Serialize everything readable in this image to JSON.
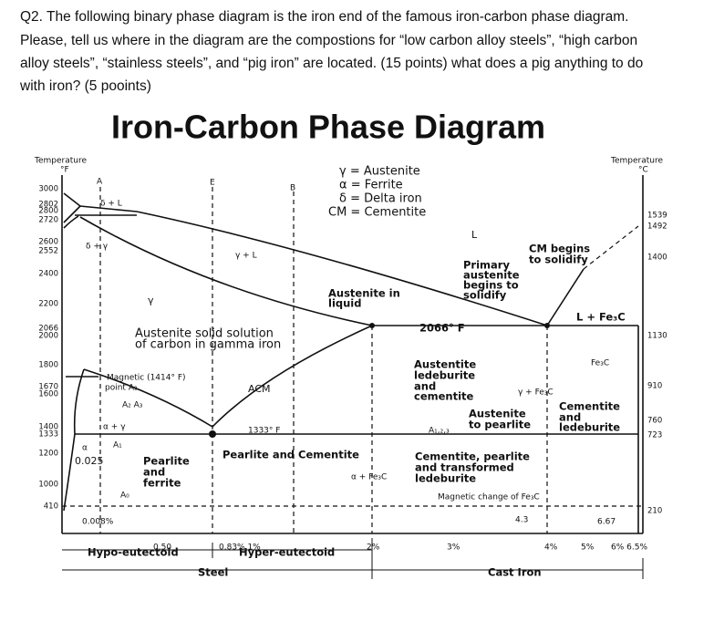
{
  "question": {
    "lines": [
      "Q2. The following binary phase diagram is the iron end of the famous iron-carbon phase diagram.",
      "Please, tell us where in the diagram are the compostions for “low carbon alloy steels”, “high carbon",
      "alloy steels”, “stainless steels”, and “pig iron” are located. (15 points) what does a pig anything to do",
      "with iron? (5 pooints)"
    ]
  },
  "diagram": {
    "title": "Iron-Carbon Phase Diagram",
    "left_ticks": [
      "3000",
      "2802",
      "2800",
      "2720",
      "2600",
      "2552",
      "2400",
      "2200",
      "2066",
      "2000",
      "1800",
      "1670",
      "1600",
      "1400",
      "1333",
      "1200",
      "1000",
      "410"
    ],
    "right_ticks": [
      "1539",
      "1492",
      "1400",
      "1130",
      "910",
      "760",
      "723",
      "210"
    ],
    "labels": [
      "Temperature",
      "°F",
      "Temperature",
      "°C",
      "γ = Austenite",
      "α = Ferrite",
      "δ = Delta  iron",
      "CM = Cementite",
      "A",
      "E",
      "B",
      "δ + L",
      "δ + γ",
      "γ + L",
      "L",
      "γ",
      "Austenite in",
      "liquid",
      "Primary",
      "austenite",
      "begins to",
      "solidify",
      "CM begins",
      "to solidify",
      "L + Fe₃C",
      "2066° F",
      "Austenite solid solution",
      "of carbon in gamma iron",
      "Fe₃C",
      "Austentite",
      "ledeburite",
      "and",
      "cementite",
      "Magnetic  (1414° F)",
      "point A₂",
      "A₂    A₃",
      "ACM",
      "γ + Fe₃C",
      "Cementite",
      "and",
      "ledeburite",
      "Austenite",
      "to pearlite",
      "α + γ",
      "1333° F",
      "A₁,₂,₃",
      "α",
      "A₁",
      "0.025",
      "Pearlite",
      "and",
      "ferrite",
      "Pearlite and Cementite",
      "Cementite, pearlite",
      "and transformed",
      "ledeburite",
      "α + Fe₃C",
      "A₀",
      "Magnetic  change  of  Fe₃C",
      "0.008%",
      "4.3",
      "6.67",
      "0.50",
      "0.83%  1%",
      "2%",
      "3%",
      "4%",
      "5%",
      "6%  6.5%",
      "Hypo-eutectoid",
      "Hyper-eutectoid",
      "Steel",
      "Cast Iron"
    ]
  }
}
